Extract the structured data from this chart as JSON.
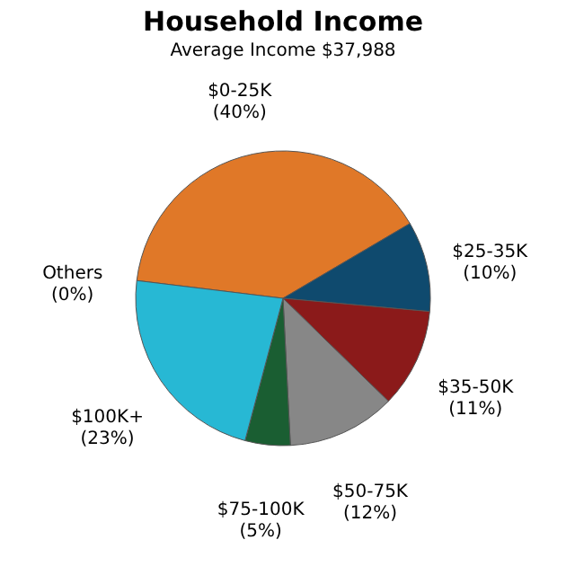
{
  "chart_data": {
    "type": "pie",
    "title": "Household Income",
    "subtitle": "Average Income  $37,988",
    "categories": [
      "$0-25K",
      "$25-35K",
      "$35-50K",
      "$50-75K",
      "$75-100K",
      "$100K+",
      "Others"
    ],
    "values": [
      40,
      10,
      11,
      12,
      5,
      23,
      0
    ],
    "value_labels": [
      "(40%)",
      "(10%)",
      "(11%)",
      "(12%)",
      "(5%)",
      "(23%)",
      "(0%)"
    ],
    "colors": [
      "#e07828",
      "#0f4a6e",
      "#8b1a1a",
      "#878787",
      "#1a5e32",
      "#27b8d4",
      "#cccccc"
    ],
    "legend": false
  }
}
